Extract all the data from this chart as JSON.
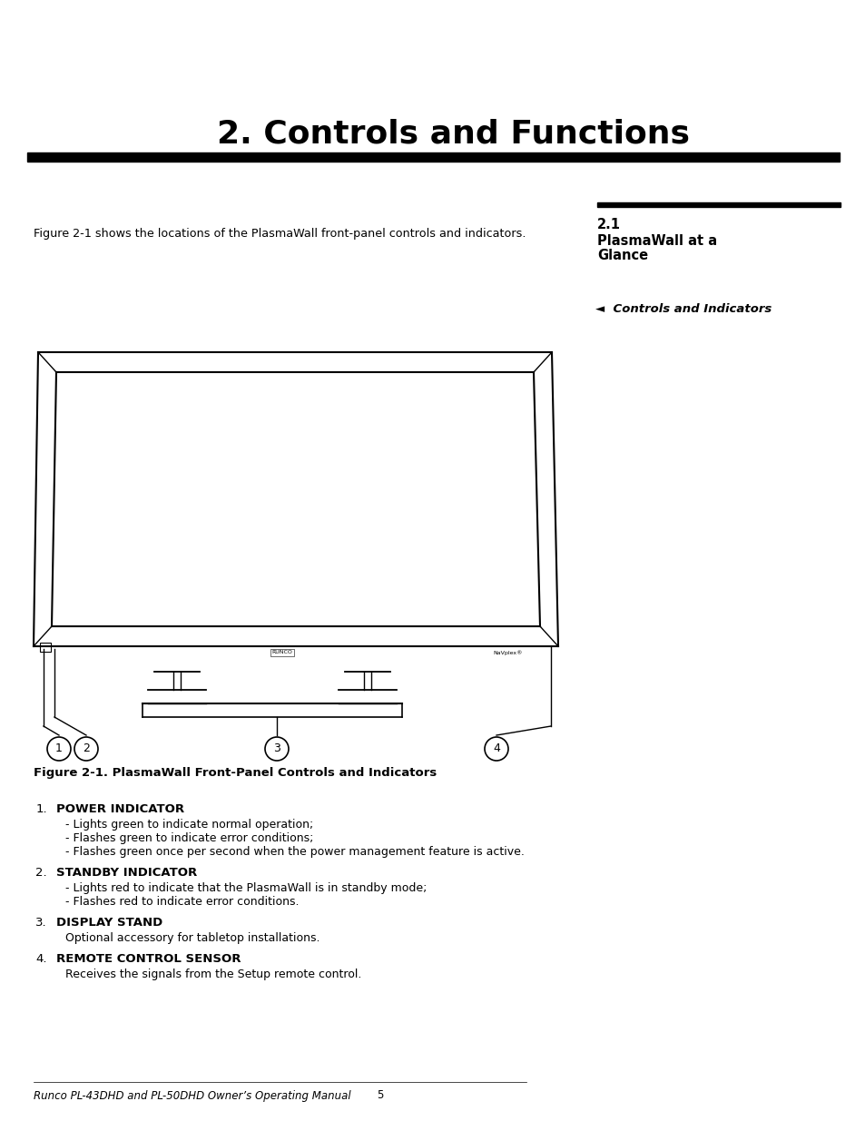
{
  "title": "2. Controls and Functions",
  "title_fontsize": 26,
  "sidebar_title_num": "2.1",
  "sidebar_arrow_text": "◄  Controls and Indicators",
  "intro_text": "Figure 2-1 shows the locations of the PlasmaWall front-panel controls and indicators.",
  "figure_caption": "Figure 2-1. PlasmaWall Front-Panel Controls and Indicators",
  "items": [
    {
      "num": "1.",
      "bold": "POWER INDICATOR",
      "details": [
        "- Lights green to indicate normal operation;",
        "- Flashes green to indicate error conditions;",
        "- Flashes green once per second when the power management feature is active."
      ]
    },
    {
      "num": "2.",
      "bold": "STANDBY INDICATOR",
      "details": [
        "- Lights red to indicate that the PlasmaWall is in standby mode;",
        "- Flashes red to indicate error conditions."
      ]
    },
    {
      "num": "3.",
      "bold": "DISPLAY STAND",
      "details": [
        "Optional accessory for tabletop installations."
      ]
    },
    {
      "num": "4.",
      "bold": "REMOTE CONTROL SENSOR",
      "details": [
        "Receives the signals from the Setup remote control."
      ]
    }
  ],
  "footer_text": "Runco PL-43DHD and PL-50DHD Owner’s Operating Manual",
  "footer_page": "5",
  "bg_color": "#ffffff",
  "text_color": "#000000"
}
